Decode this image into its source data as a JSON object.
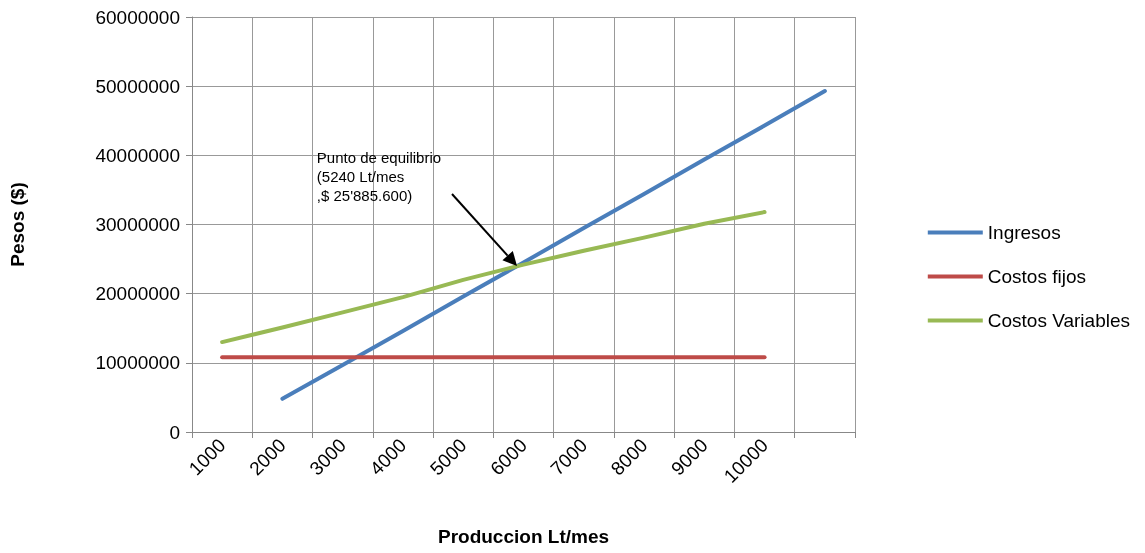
{
  "chart_data": {
    "type": "line",
    "xlabel": "Produccion Lt/mes",
    "ylabel": "Pesos ($)",
    "categories": [
      "1000",
      "2000",
      "3000",
      "4000",
      "5000",
      "6000",
      "7000",
      "8000",
      "9000",
      "10000",
      null
    ],
    "series": [
      {
        "name": "Ingresos",
        "color": "#4a7ebb",
        "values": [
          null,
          4800000,
          9700000,
          14600000,
          19600000,
          24500000,
          29500000,
          34400000,
          39400000,
          44300000,
          49300000
        ]
      },
      {
        "name": "Costos fijos",
        "color": "#be4b48",
        "values": [
          10800000,
          10800000,
          10800000,
          10800000,
          10800000,
          10800000,
          10800000,
          10800000,
          10800000,
          10800000,
          null
        ]
      },
      {
        "name": "Costos Variables",
        "color": "#98b954",
        "values": [
          13000000,
          15100000,
          17300000,
          19500000,
          22000000,
          24200000,
          26200000,
          28100000,
          30100000,
          31800000,
          null
        ]
      }
    ],
    "ylim": [
      0,
      60000000
    ],
    "yticks": [
      0,
      10000000,
      20000000,
      30000000,
      40000000,
      50000000,
      60000000
    ],
    "grid": true,
    "legend": "right",
    "marker": "none",
    "line_style": "solid",
    "annotations": [
      "Punto de equilibrio\n(5240 Lt/mes\n,$ 25'885.600)"
    ]
  }
}
